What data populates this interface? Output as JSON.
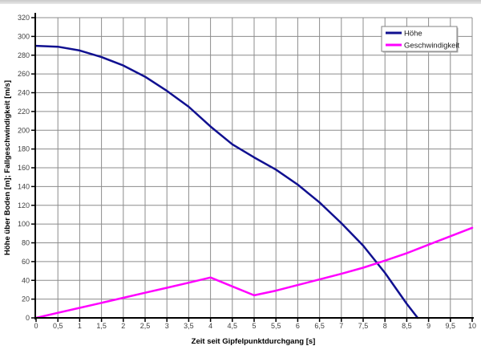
{
  "page": {
    "background_color": "#ffffff",
    "top_strip_color": "#c9c9c9"
  },
  "chart_data": {
    "type": "line",
    "title": "",
    "xlabel": "Zeit seit Gipfelpunktdurchgang [s]",
    "ylabel": "Höhe über Boden [m]; Fallgeschwindigkeit [m/s]",
    "xlim": [
      0,
      10
    ],
    "ylim": [
      0,
      320
    ],
    "grid": true,
    "gridline_color": "#8c8c8c",
    "axis_color": "#000000",
    "x_ticks": [
      0,
      0.5,
      1,
      1.5,
      2,
      2.5,
      3,
      3.5,
      4,
      4.5,
      5,
      5.5,
      6,
      6.5,
      7,
      7.5,
      8,
      8.5,
      9,
      9.5,
      10
    ],
    "x_tick_labels": [
      "0",
      "0,5",
      "1",
      "1,5",
      "2",
      "2,5",
      "3",
      "3,5",
      "4",
      "4,5",
      "5",
      "5,5",
      "6",
      "6,5",
      "7",
      "7,5",
      "8",
      "8,5",
      "9",
      "9,5",
      "10"
    ],
    "y_ticks": [
      0,
      20,
      40,
      60,
      80,
      100,
      120,
      140,
      160,
      180,
      200,
      220,
      240,
      260,
      280,
      300,
      320
    ],
    "y_tick_labels": [
      "0",
      "20",
      "40",
      "60",
      "80",
      "100",
      "120",
      "140",
      "160",
      "180",
      "200",
      "220",
      "240",
      "260",
      "280",
      "300",
      "320"
    ],
    "legend_position": "top-right",
    "legend_border_color": "#808080",
    "series": [
      {
        "name": "Höhe",
        "color": "#101090",
        "x": [
          0,
          0.5,
          1,
          1.5,
          2,
          2.5,
          3,
          3.5,
          4,
          4.5,
          5,
          5.5,
          6,
          6.5,
          7,
          7.5,
          8,
          8.5,
          8.75
        ],
        "y": [
          290,
          289,
          285,
          278,
          269,
          257,
          242,
          225,
          204,
          185,
          171,
          158,
          142,
          123,
          101,
          77,
          48,
          15,
          0
        ]
      },
      {
        "name": "Geschwindigkeit",
        "color": "#FF00FF",
        "x": [
          0,
          0.5,
          1,
          1.5,
          2,
          2.5,
          3,
          3.5,
          4,
          4.5,
          5,
          5.5,
          6,
          6.5,
          7,
          7.5,
          8,
          8.5,
          9,
          9.5,
          10
        ],
        "y": [
          0,
          5.4,
          10.7,
          16,
          21.4,
          26.8,
          32.1,
          37.5,
          43,
          33.5,
          24,
          29,
          35,
          41,
          47,
          53.5,
          61,
          69,
          78,
          87,
          96
        ]
      }
    ]
  }
}
